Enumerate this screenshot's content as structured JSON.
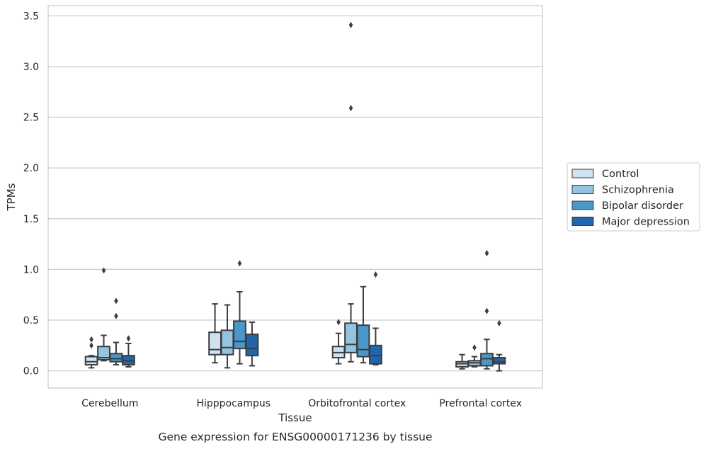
{
  "chart_data": {
    "type": "box",
    "xlabel": "Tissue",
    "ylabel": "TPMs",
    "caption": "Gene expression for ENSG00000171236 by tissue",
    "ylim": [
      -0.17,
      3.6
    ],
    "yticks": [
      "0.0",
      "0.5",
      "1.0",
      "1.5",
      "2.0",
      "2.5",
      "3.0",
      "3.5"
    ],
    "grid": "horizontal",
    "legend_position": "right",
    "categories": [
      "Cerebellum",
      "Hipppocampus",
      "Orbitofrontal cortex",
      "Prefrontal cortex"
    ],
    "series": [
      {
        "name": "Control",
        "color": "#d0e1f2",
        "boxes": [
          {
            "whislo": 0.03,
            "q1": 0.06,
            "med": 0.09,
            "q3": 0.14,
            "whishi": 0.15,
            "fliers": [
              0.25,
              0.31
            ]
          },
          {
            "whislo": 0.08,
            "q1": 0.16,
            "med": 0.21,
            "q3": 0.38,
            "whishi": 0.66,
            "fliers": []
          },
          {
            "whislo": 0.07,
            "q1": 0.13,
            "med": 0.18,
            "q3": 0.24,
            "whishi": 0.37,
            "fliers": [
              0.48
            ]
          },
          {
            "whislo": 0.02,
            "q1": 0.04,
            "med": 0.07,
            "q3": 0.09,
            "whishi": 0.16,
            "fliers": []
          }
        ]
      },
      {
        "name": "Schizophrenia",
        "color": "#94c4df",
        "boxes": [
          {
            "whislo": 0.1,
            "q1": 0.11,
            "med": 0.13,
            "q3": 0.24,
            "whishi": 0.35,
            "fliers": [
              0.99
            ]
          },
          {
            "whislo": 0.03,
            "q1": 0.16,
            "med": 0.23,
            "q3": 0.4,
            "whishi": 0.65,
            "fliers": []
          },
          {
            "whislo": 0.09,
            "q1": 0.18,
            "med": 0.26,
            "q3": 0.47,
            "whishi": 0.66,
            "fliers": [
              2.59,
              3.41
            ]
          },
          {
            "whislo": 0.04,
            "q1": 0.05,
            "med": 0.08,
            "q3": 0.1,
            "whishi": 0.14,
            "fliers": [
              0.23
            ]
          }
        ]
      },
      {
        "name": "Bipolar disorder",
        "color": "#4a98c9",
        "boxes": [
          {
            "whislo": 0.06,
            "q1": 0.09,
            "med": 0.12,
            "q3": 0.17,
            "whishi": 0.28,
            "fliers": [
              0.54,
              0.69
            ]
          },
          {
            "whislo": 0.07,
            "q1": 0.22,
            "med": 0.29,
            "q3": 0.49,
            "whishi": 0.78,
            "fliers": [
              1.06
            ]
          },
          {
            "whislo": 0.08,
            "q1": 0.14,
            "med": 0.21,
            "q3": 0.45,
            "whishi": 0.83,
            "fliers": []
          },
          {
            "whislo": 0.02,
            "q1": 0.05,
            "med": 0.12,
            "q3": 0.17,
            "whishi": 0.31,
            "fliers": [
              0.59,
              1.16
            ]
          }
        ]
      },
      {
        "name": "Major depression",
        "color": "#2166ac",
        "boxes": [
          {
            "whislo": 0.04,
            "q1": 0.06,
            "med": 0.1,
            "q3": 0.15,
            "whishi": 0.27,
            "fliers": [
              0.32
            ]
          },
          {
            "whislo": 0.05,
            "q1": 0.15,
            "med": 0.22,
            "q3": 0.36,
            "whishi": 0.48,
            "fliers": []
          },
          {
            "whislo": 0.06,
            "q1": 0.07,
            "med": 0.15,
            "q3": 0.25,
            "whishi": 0.42,
            "fliers": [
              0.95
            ]
          },
          {
            "whislo": 0.0,
            "q1": 0.07,
            "med": 0.09,
            "q3": 0.13,
            "whishi": 0.16,
            "fliers": [
              0.47
            ]
          }
        ]
      }
    ]
  }
}
